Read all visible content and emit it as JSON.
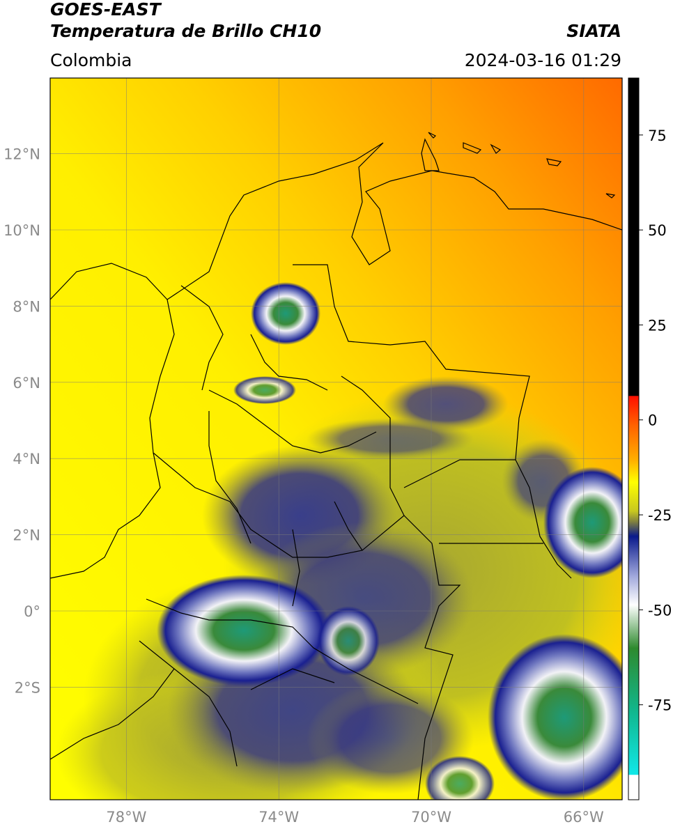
{
  "header": {
    "line1": "GOES-EAST",
    "line2": "Temperatura de Brillo CH10",
    "region": "Colombia",
    "agency": "SIATA",
    "datetime": "2024-03-16 01:29"
  },
  "map": {
    "lon_range": [
      -80,
      -65
    ],
    "lat_range": [
      -5,
      14
    ],
    "lon_ticks": [
      {
        "value": -78,
        "label": "78°W"
      },
      {
        "value": -74,
        "label": "74°W"
      },
      {
        "value": -70,
        "label": "70°W"
      },
      {
        "value": -66,
        "label": "66°W"
      }
    ],
    "lat_ticks": [
      {
        "value": 12,
        "label": "12°N"
      },
      {
        "value": 10,
        "label": "10°N"
      },
      {
        "value": 8,
        "label": "8°N"
      },
      {
        "value": 6,
        "label": "6°N"
      },
      {
        "value": 4,
        "label": "4°N"
      },
      {
        "value": 2,
        "label": "2°N"
      },
      {
        "value": 0,
        "label": "0°"
      },
      {
        "value": -2,
        "label": "2°S"
      }
    ],
    "gridlines": true
  },
  "colorbar": {
    "range": [
      -100,
      90
    ],
    "ticks": [
      {
        "value": 75,
        "label": "75"
      },
      {
        "value": 50,
        "label": "50"
      },
      {
        "value": 25,
        "label": "25"
      },
      {
        "value": 0,
        "label": "0"
      },
      {
        "value": -25,
        "label": "-25"
      },
      {
        "value": -50,
        "label": "-50"
      },
      {
        "value": -75,
        "label": "-75"
      }
    ],
    "colors": {
      "black": "#000000",
      "red": "#ff2000",
      "orange": "#ff8c00",
      "yellow": "#ffff00",
      "olive": "#a8a828",
      "navy": "#0a1a8c",
      "white": "#ffffff",
      "green": "#2e8a2e",
      "teal": "#10c0a8",
      "cyan": "#10e8e8"
    }
  }
}
